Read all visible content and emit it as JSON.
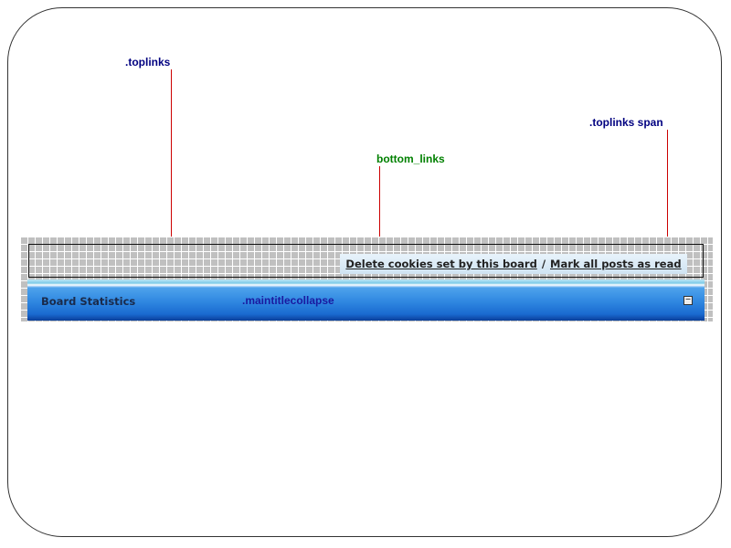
{
  "annotations": {
    "toplinks": ".toplinks",
    "bottom_links": "bottom_links",
    "toplinks_span": ".toplinks span",
    "maintitlecollapse": ".maintitlecollapse"
  },
  "colors": {
    "annotation_blue": "#000080",
    "annotation_green": "#008000",
    "pointer_line": "#cc0000",
    "title_bar": "#2e86e0"
  },
  "links": {
    "delete_cookies": "Delete cookies set by this board",
    "separator": "/",
    "mark_read": "Mark all posts as read"
  },
  "maintitle": {
    "title": "Board Statistics",
    "collapse_icon": "minus-icon",
    "collapse_symbol": "−"
  }
}
